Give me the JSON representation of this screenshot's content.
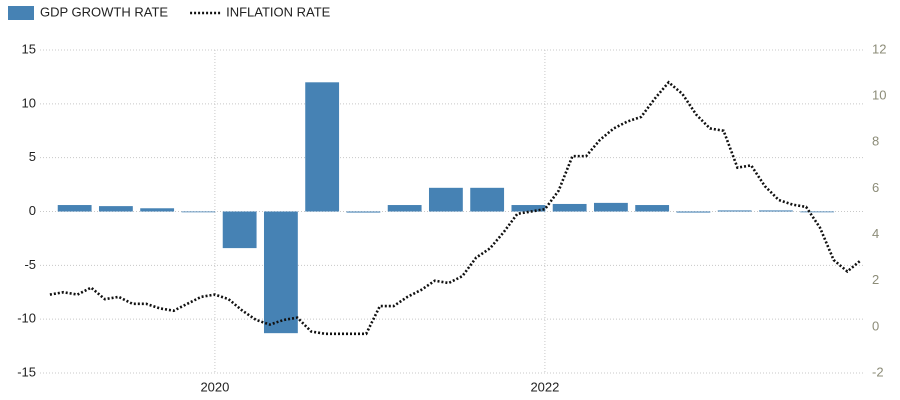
{
  "chart_data": {
    "type": "bar",
    "xlim": [
      2018.94,
      2023.94
    ],
    "xticks": [
      2020,
      2022
    ],
    "ylim": [
      -15,
      15
    ],
    "yticks": [
      -15,
      -10,
      -5,
      0,
      5,
      10,
      15
    ],
    "y2lim": [
      -2,
      12
    ],
    "y2ticks": [
      -2,
      0,
      2,
      4,
      6,
      8,
      10,
      12
    ],
    "grid": true,
    "legend": "top-left",
    "series": [
      {
        "name": "GDP GROWTH RATE",
        "type": "bar",
        "color": "#4682b4",
        "x": [
          2019.15,
          2019.4,
          2019.65,
          2019.9,
          2020.15,
          2020.4,
          2020.65,
          2020.9,
          2021.15,
          2021.4,
          2021.65,
          2021.9,
          2022.15,
          2022.4,
          2022.65,
          2022.9,
          2023.15,
          2023.4,
          2023.65
        ],
        "values": [
          0.6,
          0.5,
          0.3,
          0.0,
          -3.4,
          -11.3,
          12.0,
          -0.1,
          0.6,
          2.2,
          2.2,
          0.6,
          0.7,
          0.8,
          0.6,
          -0.1,
          0.1,
          0.1,
          0.0
        ]
      },
      {
        "name": "INFLATION RATE",
        "type": "line",
        "color": "#111111",
        "axis": "y2",
        "x": [
          2019.0,
          2019.083,
          2019.167,
          2019.25,
          2019.333,
          2019.417,
          2019.5,
          2019.583,
          2019.667,
          2019.75,
          2019.833,
          2019.917,
          2020.0,
          2020.083,
          2020.167,
          2020.25,
          2020.333,
          2020.417,
          2020.5,
          2020.583,
          2020.667,
          2020.75,
          2020.833,
          2020.917,
          2021.0,
          2021.083,
          2021.167,
          2021.25,
          2021.333,
          2021.417,
          2021.5,
          2021.583,
          2021.667,
          2021.75,
          2021.833,
          2021.917,
          2022.0,
          2022.083,
          2022.167,
          2022.25,
          2022.333,
          2022.417,
          2022.5,
          2022.583,
          2022.667,
          2022.75,
          2022.833,
          2022.917,
          2023.0,
          2023.083,
          2023.167,
          2023.25,
          2023.333,
          2023.417,
          2023.5,
          2023.583,
          2023.667,
          2023.75,
          2023.833,
          2023.917
        ],
        "values": [
          1.4,
          1.5,
          1.4,
          1.7,
          1.2,
          1.3,
          1.0,
          1.0,
          0.8,
          0.7,
          1.0,
          1.3,
          1.4,
          1.2,
          0.7,
          0.3,
          0.1,
          0.3,
          0.4,
          -0.2,
          -0.3,
          -0.3,
          -0.3,
          -0.3,
          0.9,
          0.9,
          1.3,
          1.6,
          2.0,
          1.9,
          2.2,
          3.0,
          3.4,
          4.1,
          4.9,
          5.0,
          5.1,
          5.9,
          7.4,
          7.4,
          8.1,
          8.6,
          8.9,
          9.1,
          9.9,
          10.6,
          10.1,
          9.2,
          8.6,
          8.5,
          6.9,
          7.0,
          6.1,
          5.5,
          5.3,
          5.2,
          4.3,
          2.9,
          2.4,
          2.9
        ]
      }
    ]
  }
}
